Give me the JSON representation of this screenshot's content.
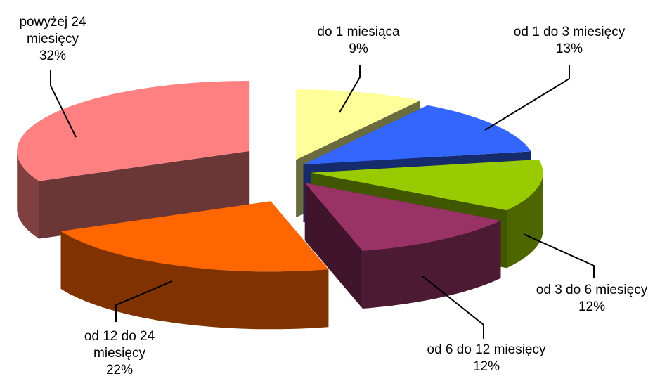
{
  "chart_data": {
    "type": "pie",
    "title": "",
    "style": "3d-exploded",
    "slices": [
      {
        "label_lines": [
          "do 1 miesiąca"
        ],
        "percent_label": "9%",
        "value": 9,
        "color": "#ffff99"
      },
      {
        "label_lines": [
          "od 1 do 3 miesięcy"
        ],
        "percent_label": "13%",
        "value": 13,
        "color": "#3366ff"
      },
      {
        "label_lines": [
          "od 3 do 6 miesięcy"
        ],
        "percent_label": "12%",
        "value": 12,
        "color": "#99cc00"
      },
      {
        "label_lines": [
          "od 6 do 12 miesięcy"
        ],
        "percent_label": "12%",
        "value": 12,
        "color": "#993366"
      },
      {
        "label_lines": [
          "od 12 do 24",
          "miesięcy"
        ],
        "percent_label": "22%",
        "value": 22,
        "color": "#ff6600"
      },
      {
        "label_lines": [
          "powyżej 24",
          "miesięcy"
        ],
        "percent_label": "32%",
        "value": 32,
        "color": "#ff8080"
      }
    ]
  }
}
